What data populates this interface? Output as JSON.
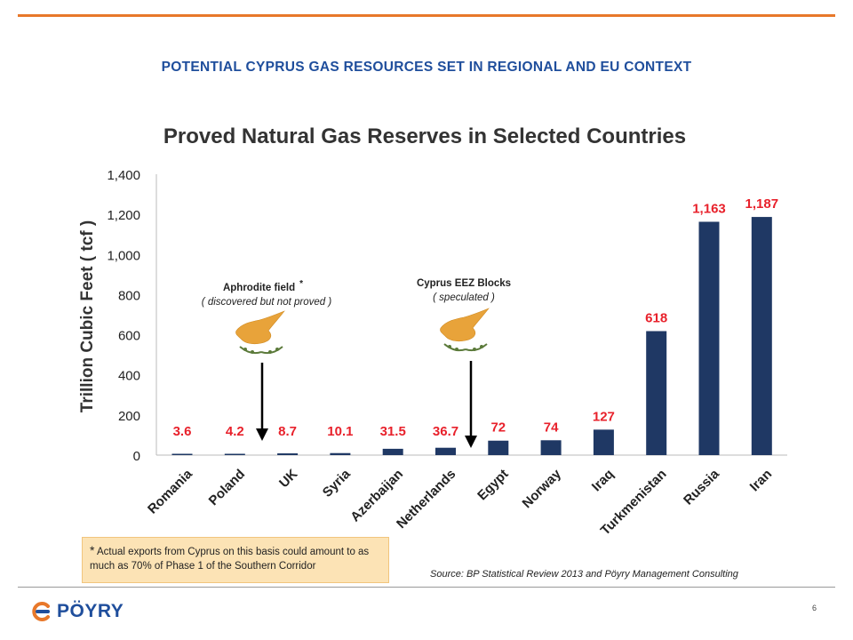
{
  "page": {
    "title": "POTENTIAL CYPRUS GAS RESOURCES SET IN REGIONAL AND EU CONTEXT",
    "footnote_star": "*",
    "footnote": "Actual exports from Cyprus on this basis could amount to as much as 70% of Phase 1 of the Southern Corridor",
    "source": "Source: BP Statistical Review 2013 and Pöyry Management Consulting",
    "logo_text": "PÖYRY",
    "page_number": "6",
    "colors": {
      "accent": "#e8782a",
      "title": "#1f4e9c",
      "bar": "#1f3864",
      "value_label": "#e8212b",
      "footnote_bg": "#fce3b5"
    }
  },
  "chart_data": {
    "type": "bar",
    "title": "Proved Natural Gas Reserves in Selected Countries",
    "ylabel": "Trillion Cubic Feet ( tcf )",
    "xlabel": "",
    "ylim": [
      0,
      1400
    ],
    "yticks": [
      "0",
      "200",
      "400",
      "600",
      "800",
      "1,000",
      "1,200",
      "1,400"
    ],
    "yticks_values": [
      0,
      200,
      400,
      600,
      800,
      1000,
      1200,
      1400
    ],
    "grid": false,
    "categories": [
      "Romania",
      "Poland",
      "UK",
      "Syria",
      "Azerbaijan",
      "Netherlands",
      "Egypt",
      "Norway",
      "Iraq",
      "Turkmenistan",
      "Russia",
      "Iran"
    ],
    "values": [
      3.6,
      4.2,
      8.7,
      10.1,
      31.5,
      36.7,
      72,
      74,
      127,
      618,
      1163,
      1187
    ],
    "value_labels": [
      "3.6",
      "4.2",
      "8.7",
      "10.1",
      "31.5",
      "36.7",
      "72",
      "74",
      "127",
      "618",
      "1,163",
      "1,187"
    ],
    "annotations": [
      {
        "line1": "Aphrodite field",
        "star": "*",
        "line2": "( discovered but not proved )",
        "icon": "cyprus-emblem-icon",
        "arrow": "down-arrow"
      },
      {
        "line1": "Cyprus EEZ Blocks",
        "line2": "( speculated )",
        "icon": "cyprus-emblem-icon",
        "arrow": "down-arrow"
      }
    ]
  }
}
